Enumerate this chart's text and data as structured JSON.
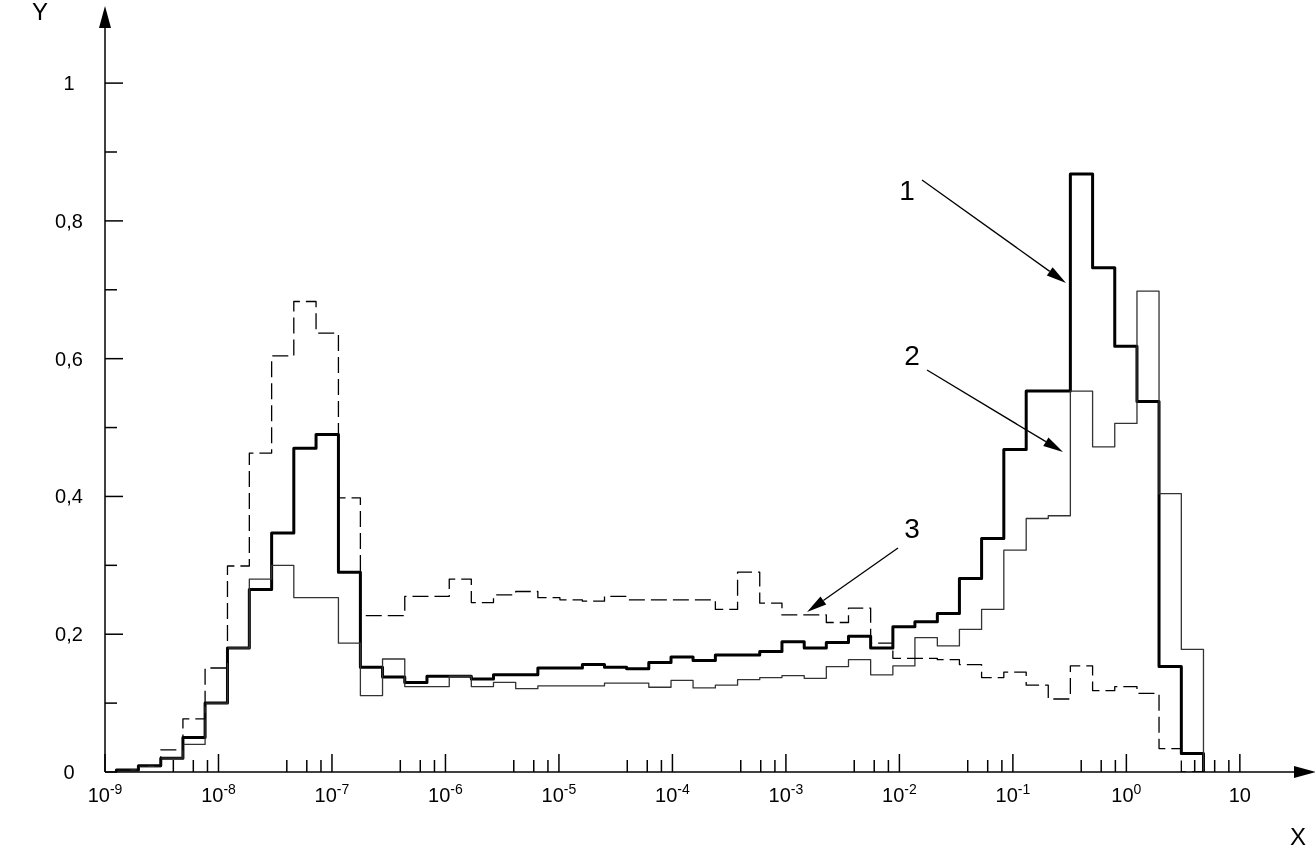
{
  "chart_data": {
    "type": "histogram",
    "xlabel": "X",
    "ylabel": "Y",
    "log": "x",
    "xlim": [
      1e-09,
      30
    ],
    "ylim": [
      0,
      1.08
    ],
    "xticks": [
      {
        "value": 1e-09,
        "label": "10$^{-9}$"
      },
      {
        "value": 4e-09,
        "label": null
      },
      {
        "value": 6e-09,
        "label": null
      },
      {
        "value": 8e-09,
        "label": null
      },
      {
        "value": 1e-08,
        "label": "10$^{-8}$"
      },
      {
        "value": 4e-08,
        "label": null
      },
      {
        "value": 6e-08,
        "label": null
      },
      {
        "value": 8e-08,
        "label": null
      },
      {
        "value": 1e-07,
        "label": "10$^{-7}$"
      },
      {
        "value": 4e-07,
        "label": null
      },
      {
        "value": 6e-07,
        "label": null
      },
      {
        "value": 8e-07,
        "label": null
      },
      {
        "value": 1e-06,
        "label": "10$^{-6}$"
      },
      {
        "value": 4e-06,
        "label": null
      },
      {
        "value": 6e-06,
        "label": null
      },
      {
        "value": 8e-06,
        "label": null
      },
      {
        "value": 1e-05,
        "label": "10$^{-5}$"
      },
      {
        "value": 4e-05,
        "label": null
      },
      {
        "value": 6e-05,
        "label": null
      },
      {
        "value": 8e-05,
        "label": null
      },
      {
        "value": 0.0001,
        "label": "10$^{-4}$"
      },
      {
        "value": 0.0004,
        "label": null
      },
      {
        "value": 0.0006,
        "label": null
      },
      {
        "value": 0.0008,
        "label": null
      },
      {
        "value": 0.001,
        "label": "10$^{-3}$"
      },
      {
        "value": 0.004,
        "label": null
      },
      {
        "value": 0.006,
        "label": null
      },
      {
        "value": 0.008,
        "label": null
      },
      {
        "value": 0.01,
        "label": "10$^{-2}$"
      },
      {
        "value": 0.04,
        "label": null
      },
      {
        "value": 0.06,
        "label": null
      },
      {
        "value": 0.08,
        "label": null
      },
      {
        "value": 0.1,
        "label": "10$^{-1}$"
      },
      {
        "value": 0.4,
        "label": null
      },
      {
        "value": 0.6,
        "label": null
      },
      {
        "value": 0.8,
        "label": null
      },
      {
        "value": 1,
        "label": "10$^{0}$"
      },
      {
        "value": 4,
        "label": null
      },
      {
        "value": 6,
        "label": null
      },
      {
        "value": 8,
        "label": null
      },
      10
    ],
    "yticks": [
      0,
      {
        "value": 0.1,
        "label": null
      },
      {
        "value": 0.2,
        "label": "0,2"
      },
      {
        "value": 0.3,
        "label": null
      },
      {
        "value": 0.4,
        "label": "0,4"
      },
      {
        "value": 0.5,
        "label": null
      },
      {
        "value": 0.6,
        "label": "0,6"
      },
      {
        "value": 0.7,
        "label": null
      },
      {
        "value": 0.8,
        "label": "0,8"
      },
      {
        "value": 0.9,
        "label": null
      },
      1
    ],
    "bins": [
      1.26e-09,
      1.97e-09,
      3.1e-09,
      4.86e-09,
      7.62e-09,
      1.2e-08,
      1.87e-08,
      2.94e-08,
      4.61e-08,
      7.24e-08,
      1.14e-07,
      1.78e-07,
      2.79e-07,
      4.38e-07,
      6.87e-07,
      1.08e-06,
      1.69e-06,
      2.65e-06,
      4.16e-06,
      6.52e-06,
      1.02e-05,
      1.61e-05,
      2.52e-05,
      3.95e-05,
      6.19e-05,
      9.72e-05,
      0.000152,
      0.000239,
      0.000375,
      0.000588,
      0.000923,
      0.00145,
      0.00227,
      0.00356,
      0.00558,
      0.00876,
      0.0137,
      0.0216,
      0.0338,
      0.053,
      0.0832,
      0.131,
      0.205,
      0.321,
      0.504,
      0.79,
      1.24,
      1.94,
      3.05,
      4.78
    ],
    "series": [
      {
        "color": "#000000",
        "line_style": "solid",
        "values": [
          0.003,
          0.009,
          0.02,
          0.05,
          0.1,
          0.18,
          0.265,
          0.347,
          0.47,
          0.49,
          0.29,
          0.152,
          0.138,
          0.13,
          0.139,
          0.139,
          0.135,
          0.141,
          0.141,
          0.151,
          0.151,
          0.156,
          0.152,
          0.15,
          0.159,
          0.167,
          0.162,
          0.17,
          0.17,
          0.175,
          0.189,
          0.18,
          0.188,
          0.197,
          0.18,
          0.211,
          0.218,
          0.23,
          0.281,
          0.339,
          0.468,
          0.553,
          0.553,
          0.868,
          0.732,
          0.618,
          0.538,
          0.153,
          0.027
        ]
      },
      {
        "color": "#333333",
        "line_style": "solid",
        "values": [
          0.003,
          0.008,
          0.02,
          0.04,
          0.1,
          0.18,
          0.28,
          0.3,
          0.253,
          0.253,
          0.187,
          0.111,
          0.164,
          0.124,
          0.124,
          0.139,
          0.124,
          0.13,
          0.121,
          0.125,
          0.125,
          0.125,
          0.129,
          0.129,
          0.123,
          0.133,
          0.122,
          0.126,
          0.134,
          0.137,
          0.14,
          0.136,
          0.153,
          0.163,
          0.141,
          0.154,
          0.195,
          0.183,
          0.207,
          0.236,
          0.322,
          0.368,
          0.372,
          0.553,
          0.472,
          0.506,
          0.698,
          0.404,
          0.178
        ]
      },
      {
        "color": "#000000",
        "line_style": "dashed",
        "values": [
          0.003,
          0.009,
          0.032,
          0.077,
          0.151,
          0.299,
          0.463,
          0.604,
          0.683,
          0.637,
          0.398,
          0.227,
          0.227,
          0.255,
          0.255,
          0.28,
          0.246,
          0.257,
          0.262,
          0.253,
          0.25,
          0.248,
          0.255,
          0.25,
          0.25,
          0.25,
          0.25,
          0.236,
          0.29,
          0.245,
          0.228,
          0.228,
          0.217,
          0.238,
          0.187,
          0.165,
          0.165,
          0.163,
          0.156,
          0.137,
          0.145,
          0.126,
          0.106,
          0.154,
          0.118,
          0.124,
          0.114,
          0.034,
          0
        ]
      }
    ],
    "annotations": [
      "1",
      "2",
      "3"
    ]
  }
}
